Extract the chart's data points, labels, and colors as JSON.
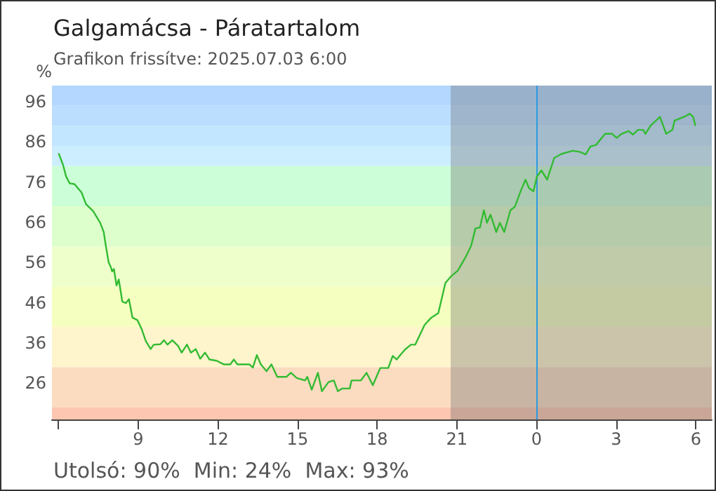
{
  "chart_data": {
    "type": "line",
    "title": "Galgamácsa - Páratartalom",
    "subtitle": "Grafikon frissítve: 2025.07.03 6:00",
    "ylabel": "%",
    "annotations": [
      "Utolsó: 90%  Min: 24%  Max: 93%"
    ],
    "x": [
      "2025-07-02T06:00",
      "2025-07-02T06:10",
      "2025-07-02T06:17",
      "2025-07-02T06:25",
      "2025-07-02T06:36",
      "2025-07-02T06:52",
      "2025-07-02T07:02",
      "2025-07-02T07:18",
      "2025-07-02T07:34",
      "2025-07-02T07:42",
      "2025-07-02T07:46",
      "2025-07-02T07:53",
      "2025-07-02T07:58",
      "2025-07-02T08:01",
      "2025-07-02T08:05",
      "2025-07-02T08:11",
      "2025-07-02T08:16",
      "2025-07-02T08:24",
      "2025-07-02T08:32",
      "2025-07-02T08:39",
      "2025-07-02T08:47",
      "2025-07-02T08:58",
      "2025-07-02T09:08",
      "2025-07-02T09:17",
      "2025-07-02T09:28",
      "2025-07-02T09:35",
      "2025-07-02T09:50",
      "2025-07-02T09:58",
      "2025-07-02T10:06",
      "2025-07-02T10:17",
      "2025-07-02T10:30",
      "2025-07-02T10:38",
      "2025-07-02T10:50",
      "2025-07-02T10:59",
      "2025-07-02T11:10",
      "2025-07-02T11:20",
      "2025-07-02T11:31",
      "2025-07-02T11:41",
      "2025-07-02T11:57",
      "2025-07-02T12:13",
      "2025-07-02T12:28",
      "2025-07-02T12:36",
      "2025-07-02T12:44",
      "2025-07-02T13:11",
      "2025-07-02T13:19",
      "2025-07-02T13:28",
      "2025-07-02T13:37",
      "2025-07-02T13:50",
      "2025-07-02T14:01",
      "2025-07-02T14:14",
      "2025-07-02T14:35",
      "2025-07-02T14:45",
      "2025-07-02T14:58",
      "2025-07-02T15:17",
      "2025-07-02T15:22",
      "2025-07-02T15:32",
      "2025-07-02T15:46",
      "2025-07-02T15:55",
      "2025-07-02T16:10",
      "2025-07-02T16:22",
      "2025-07-02T16:31",
      "2025-07-02T16:41",
      "2025-07-02T16:58",
      "2025-07-02T17:02",
      "2025-07-02T17:23",
      "2025-07-02T17:36",
      "2025-07-02T17:50",
      "2025-07-02T18:07",
      "2025-07-02T18:25",
      "2025-07-02T18:35",
      "2025-07-02T18:44",
      "2025-07-02T18:52",
      "2025-07-02T19:03",
      "2025-07-02T19:16",
      "2025-07-02T19:26",
      "2025-07-02T19:47",
      "2025-07-02T20:02",
      "2025-07-02T20:18",
      "2025-07-02T20:34",
      "2025-07-02T20:47",
      "2025-07-02T21:02",
      "2025-07-02T21:19",
      "2025-07-02T21:32",
      "2025-07-02T21:42",
      "2025-07-02T21:52",
      "2025-07-02T22:01",
      "2025-07-02T22:08",
      "2025-07-02T22:16",
      "2025-07-02T22:29",
      "2025-07-02T22:37",
      "2025-07-02T22:47",
      "2025-07-02T23:01",
      "2025-07-02T23:11",
      "2025-07-02T23:25",
      "2025-07-02T23:35",
      "2025-07-02T23:43",
      "2025-07-02T23:53",
      "2025-07-03T00:01",
      "2025-07-03T00:11",
      "2025-07-03T00:24",
      "2025-07-03T00:40",
      "2025-07-03T00:56",
      "2025-07-03T01:22",
      "2025-07-03T01:38",
      "2025-07-03T01:51",
      "2025-07-03T02:02",
      "2025-07-03T02:14",
      "2025-07-03T02:35",
      "2025-07-03T02:51",
      "2025-07-03T03:01",
      "2025-07-03T03:12",
      "2025-07-03T03:28",
      "2025-07-03T03:38",
      "2025-07-03T03:49",
      "2025-07-03T04:01",
      "2025-07-03T04:06",
      "2025-07-03T04:18",
      "2025-07-03T04:39",
      "2025-07-03T04:53",
      "2025-07-03T05:07",
      "2025-07-03T05:12",
      "2025-07-03T05:33",
      "2025-07-03T05:46",
      "2025-07-03T05:54",
      "2025-07-03T05:59"
    ],
    "series": [
      {
        "color": "#33bb33",
        "values": [
          83.2,
          80.3,
          77.4,
          75.7,
          75.5,
          73.4,
          70.5,
          68.8,
          65.9,
          63.6,
          60.7,
          56.1,
          54.9,
          53.8,
          54.4,
          50.3,
          51.8,
          46.3,
          45.9,
          46.9,
          42.3,
          41.7,
          39.4,
          36.5,
          34.5,
          35.6,
          35.7,
          36.7,
          35.6,
          36.7,
          35.3,
          33.6,
          35.6,
          33.6,
          34.5,
          32.1,
          33.6,
          31.9,
          31.6,
          30.7,
          30.7,
          31.9,
          30.7,
          30.7,
          29.9,
          33.0,
          30.7,
          29.0,
          30.7,
          27.6,
          27.6,
          28.6,
          27.3,
          26.7,
          27.6,
          24.4,
          28.6,
          24.0,
          26.3,
          26.7,
          24.0,
          24.7,
          24.7,
          26.7,
          26.7,
          28.6,
          25.5,
          29.8,
          29.8,
          32.8,
          31.9,
          33.0,
          34.4,
          35.6,
          35.6,
          40.5,
          42.3,
          43.4,
          50.9,
          52.6,
          54.0,
          57.2,
          60.1,
          64.5,
          64.7,
          69.0,
          65.9,
          67.9,
          63.6,
          65.9,
          63.6,
          69.0,
          69.9,
          74.0,
          76.6,
          74.5,
          73.7,
          77.4,
          78.9,
          76.6,
          82.0,
          83.0,
          83.8,
          83.5,
          82.9,
          84.9,
          85.2,
          88.0,
          88.0,
          87.0,
          88.0,
          88.7,
          87.8,
          89.0,
          89.0,
          88.0,
          90.1,
          92.2,
          88.0,
          89.0,
          91.3,
          92.2,
          93.0,
          92.2,
          90.0
        ]
      }
    ],
    "xlim": [
      "2025-07-02T05:45",
      "2025-07-03T06:36"
    ],
    "xticks": [
      {
        "value": "2025-07-02T06:00",
        "label": null
      },
      {
        "value": "2025-07-02T09:00",
        "label": "9"
      },
      {
        "value": "2025-07-02T12:00",
        "label": "12"
      },
      {
        "value": "2025-07-02T15:00",
        "label": "15"
      },
      {
        "value": "2025-07-02T18:00",
        "label": "18"
      },
      {
        "value": "2025-07-02T21:00",
        "label": "21"
      },
      {
        "value": "2025-07-03T00:00",
        "label": "0"
      },
      {
        "value": "2025-07-03T03:00",
        "label": "3"
      },
      {
        "value": "2025-07-03T06:00",
        "label": "6"
      }
    ],
    "ylim": [
      17,
      100
    ],
    "yticks": [
      26,
      36,
      46,
      56,
      66,
      76,
      86,
      96
    ],
    "bands": [
      {
        "axis": "y",
        "from": 95,
        "to": 100,
        "color": "#b3d7ff"
      },
      {
        "axis": "y",
        "from": 90,
        "to": 95,
        "color": "#bbdeff"
      },
      {
        "axis": "y",
        "from": 85,
        "to": 90,
        "color": "#c2e6ff"
      },
      {
        "axis": "y",
        "from": 80,
        "to": 85,
        "color": "#cceeff"
      },
      {
        "axis": "y",
        "from": 70,
        "to": 80,
        "color": "#ccffd8"
      },
      {
        "axis": "y",
        "from": 60,
        "to": 70,
        "color": "#ddffcc"
      },
      {
        "axis": "y",
        "from": 50,
        "to": 60,
        "color": "#eeffcc"
      },
      {
        "axis": "y",
        "from": 40,
        "to": 50,
        "color": "#f5ffc0"
      },
      {
        "axis": "y",
        "from": 30,
        "to": 40,
        "color": "#fff5cc"
      },
      {
        "axis": "y",
        "from": 20,
        "to": 30,
        "color": "#fbdcc0"
      },
      {
        "axis": "y",
        "from": 17,
        "to": 20,
        "color": "#fcc6b0"
      },
      {
        "axis": "x",
        "from": "2025-07-02T20:46",
        "to": "2025-07-03T06:36",
        "color": "#6a6a6a"
      }
    ],
    "ref_lines": [
      {
        "axis": "x",
        "value": "2025-07-03T00:00",
        "color": "#2a9ae0"
      }
    ],
    "grid": false,
    "marker": "none",
    "line_style": "solid"
  }
}
